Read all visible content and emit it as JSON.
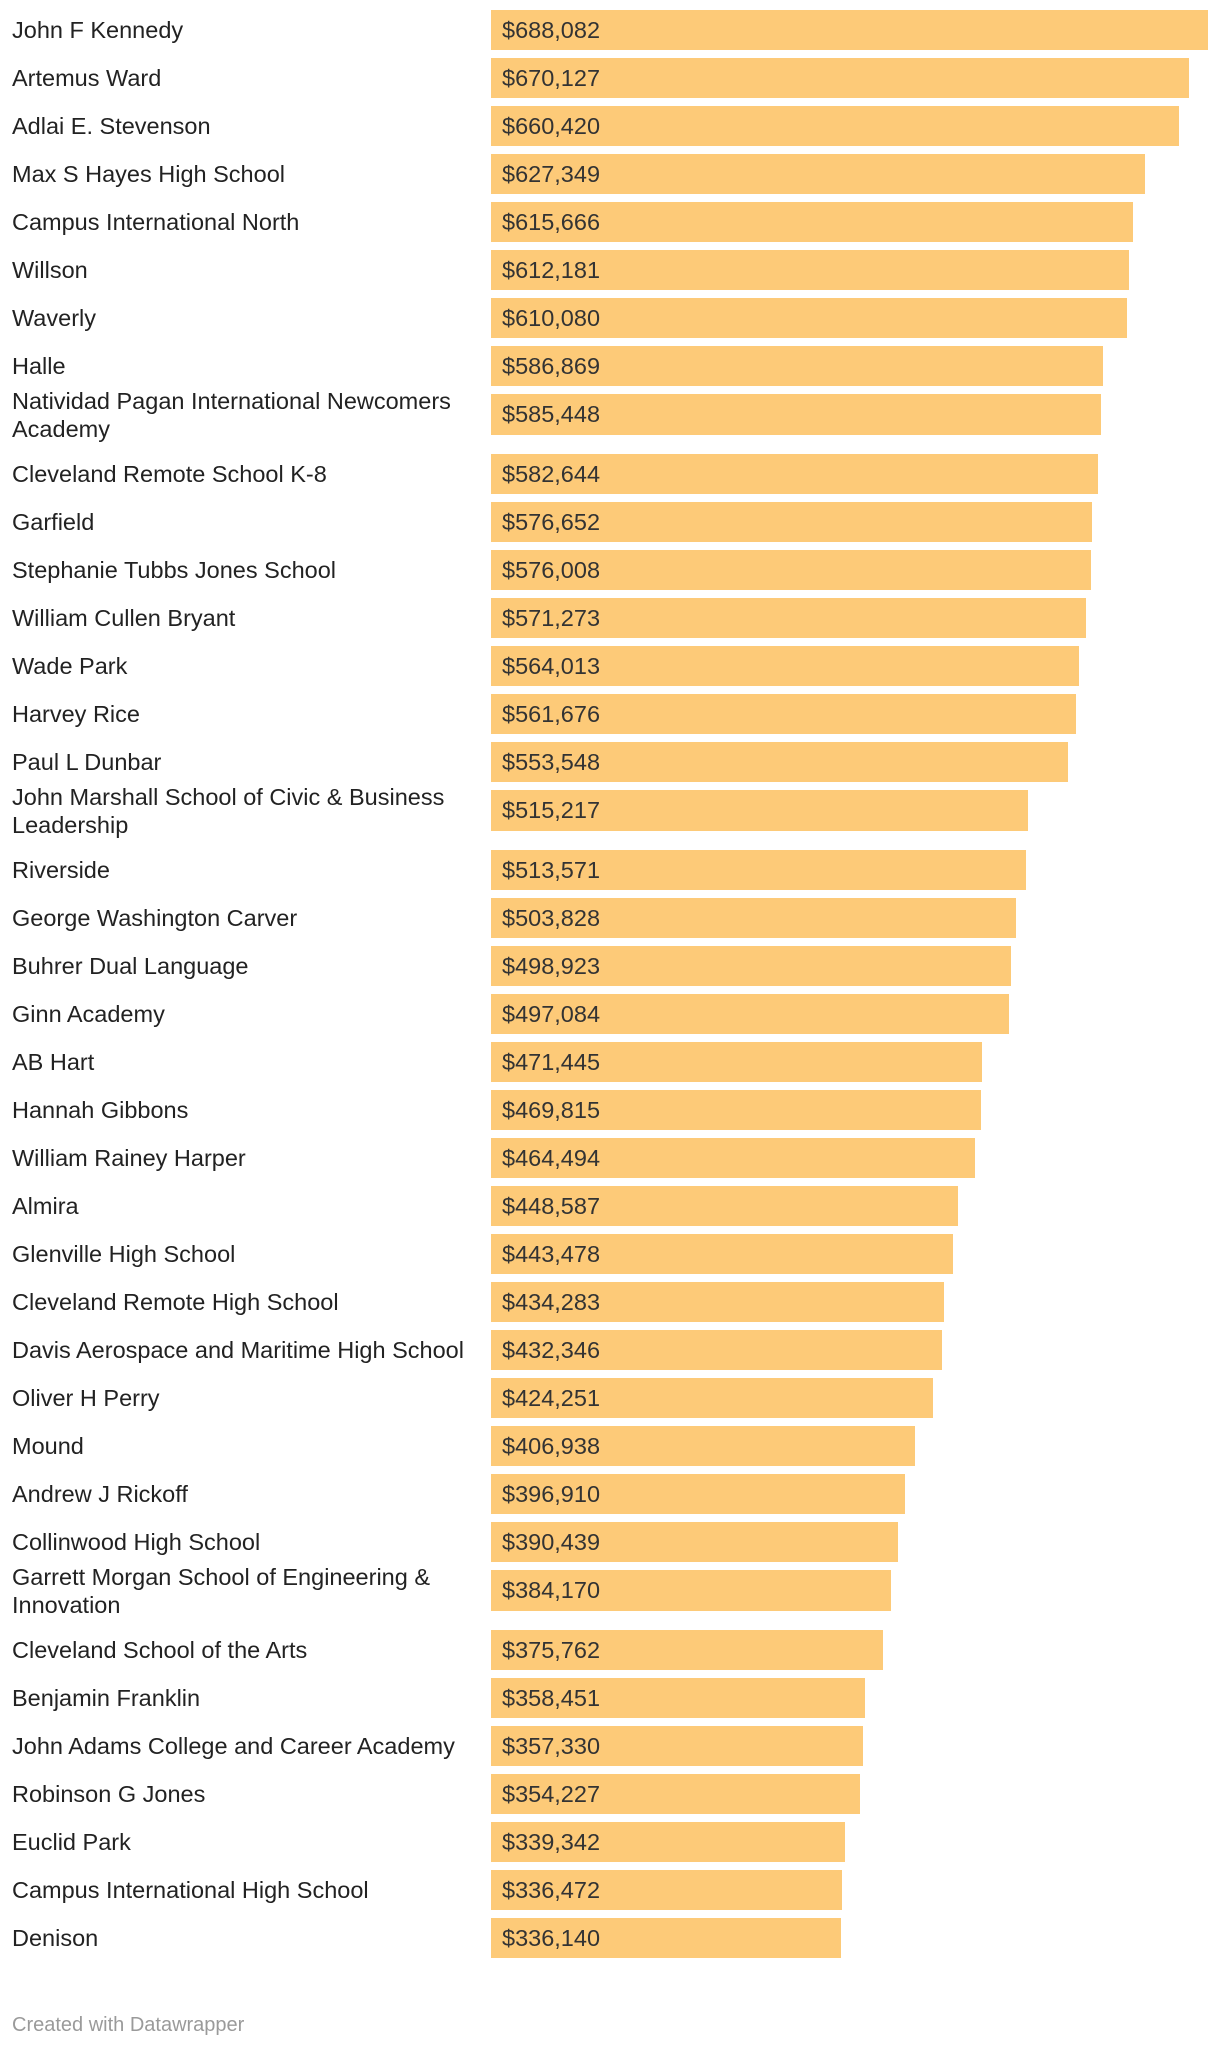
{
  "chart_data": {
    "type": "bar",
    "orientation": "horizontal",
    "categories": [
      "John F Kennedy",
      "Artemus Ward",
      "Adlai E. Stevenson",
      "Max S Hayes High School",
      "Campus International North",
      "Willson",
      "Waverly",
      "Halle",
      "Natividad Pagan International Newcomers Academy",
      "Cleveland Remote School K-8",
      "Garfield",
      "Stephanie Tubbs Jones School",
      "William Cullen Bryant",
      "Wade Park",
      "Harvey Rice",
      "Paul L Dunbar",
      "John Marshall School of Civic & Business Leadership",
      "Riverside",
      "George Washington Carver",
      "Buhrer Dual Language",
      "Ginn Academy",
      "AB Hart",
      "Hannah Gibbons",
      "William Rainey Harper",
      "Almira",
      "Glenville High School",
      "Cleveland Remote High School",
      "Davis Aerospace and Maritime High School",
      "Oliver H Perry",
      "Mound",
      "Andrew J Rickoff",
      "Collinwood High School",
      "Garrett Morgan School of Engineering & Innovation",
      "Cleveland School of the Arts",
      "Benjamin Franklin",
      "John Adams College and Career Academy",
      "Robinson G Jones",
      "Euclid Park",
      "Campus International High School",
      "Denison"
    ],
    "values": [
      688082,
      670127,
      660420,
      627349,
      615666,
      612181,
      610080,
      586869,
      585448,
      582644,
      576652,
      576008,
      571273,
      564013,
      561676,
      553548,
      515217,
      513571,
      503828,
      498923,
      497084,
      471445,
      469815,
      464494,
      448587,
      443478,
      434283,
      432346,
      424251,
      406938,
      396910,
      390439,
      384170,
      375762,
      358451,
      357330,
      354227,
      339342,
      336472,
      336140
    ],
    "value_labels": [
      "$688,082",
      "$670,127",
      "$660,420",
      "$627,349",
      "$615,666",
      "$612,181",
      "$610,080",
      "$586,869",
      "$585,448",
      "$582,644",
      "$576,652",
      "$576,008",
      "$571,273",
      "$564,013",
      "$561,676",
      "$553,548",
      "$515,217",
      "$513,571",
      "$503,828",
      "$498,923",
      "$497,084",
      "$471,445",
      "$469,815",
      "$464,494",
      "$448,587",
      "$443,478",
      "$434,283",
      "$432,346",
      "$424,251",
      "$406,938",
      "$396,910",
      "$390,439",
      "$384,170",
      "$375,762",
      "$358,451",
      "$357,330",
      "$354,227",
      "$339,342",
      "$336,472",
      "$336,140"
    ],
    "xlim": [
      0,
      688082
    ],
    "bar_color": "#fdca78"
  },
  "footer": {
    "credit": "Created with Datawrapper"
  }
}
